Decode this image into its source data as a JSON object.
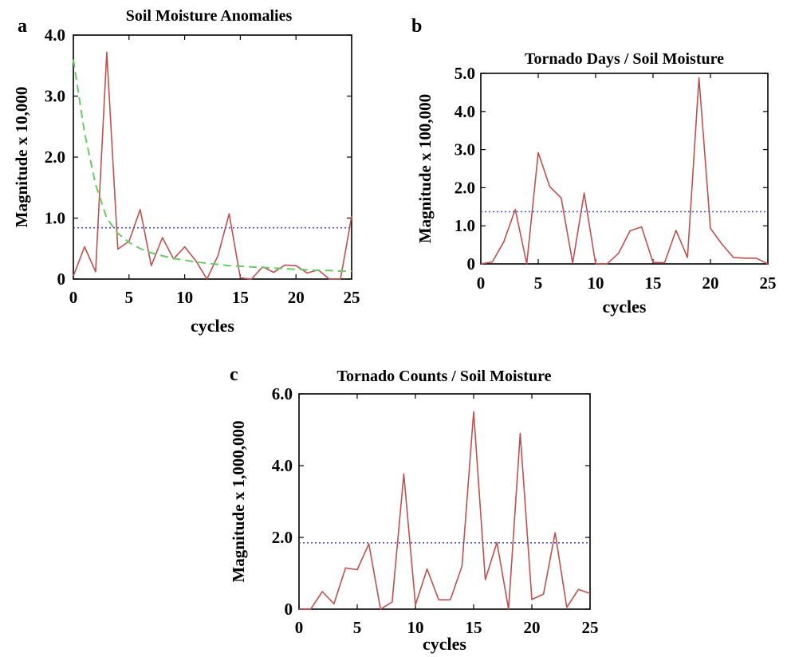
{
  "chart_data": [
    {
      "panel": "a",
      "type": "line",
      "title": "Soil Moisture Anomalies",
      "xlabel": "cycles",
      "ylabel": "Magnitude x 10,000",
      "xlim": [
        0,
        25
      ],
      "ylim": [
        0,
        4.0
      ],
      "x_ticks": [
        "0",
        "5",
        "10",
        "15",
        "20",
        "25"
      ],
      "y_ticks": [
        "0",
        "1.0",
        "2.0",
        "3.0",
        "4.0"
      ],
      "x": [
        0,
        1,
        2,
        3,
        4,
        5,
        6,
        7,
        8,
        9,
        10,
        11,
        12,
        13,
        14,
        15,
        16,
        17,
        18,
        19,
        20,
        21,
        22,
        23,
        24,
        25
      ],
      "series": [
        {
          "values": [
            0.05,
            0.53,
            0.12,
            3.72,
            0.49,
            0.62,
            1.14,
            0.22,
            0.68,
            0.33,
            0.53,
            0.3,
            0.0,
            0.39,
            1.07,
            0.02,
            0.0,
            0.2,
            0.11,
            0.23,
            0.22,
            0.1,
            0.15,
            0.0,
            0.0,
            1.03
          ],
          "color": "#c0504d",
          "style": "solid"
        },
        {
          "values": [
            3.6,
            2.4,
            1.55,
            1.0,
            0.75,
            0.6,
            0.5,
            0.43,
            0.38,
            0.34,
            0.31,
            0.28,
            0.26,
            0.24,
            0.22,
            0.21,
            0.2,
            0.19,
            0.18,
            0.17,
            0.16,
            0.15,
            0.14,
            0.14,
            0.13,
            0.13
          ],
          "color": "#66cc66",
          "style": "dashed"
        },
        {
          "values": [
            0.84,
            0.84,
            0.84,
            0.84,
            0.84,
            0.84,
            0.84,
            0.84,
            0.84,
            0.84,
            0.84,
            0.84,
            0.84,
            0.84,
            0.84,
            0.84,
            0.84,
            0.84,
            0.84,
            0.84,
            0.84,
            0.84,
            0.84,
            0.84,
            0.84,
            0.84
          ],
          "color": "#4a4acc",
          "style": "dotted"
        }
      ]
    },
    {
      "panel": "b",
      "type": "line",
      "title": "Tornado Days / Soil Moisture",
      "xlabel": "cycles",
      "ylabel": "Magnitude x 100,000",
      "xlim": [
        0,
        25
      ],
      "ylim": [
        0,
        5.0
      ],
      "x_ticks": [
        "0",
        "5",
        "10",
        "15",
        "20",
        "25"
      ],
      "y_ticks": [
        "0",
        "1.0",
        "2.0",
        "3.0",
        "4.0",
        "5.0"
      ],
      "x": [
        0,
        1,
        2,
        3,
        4,
        5,
        6,
        7,
        8,
        9,
        10,
        11,
        12,
        13,
        14,
        15,
        16,
        17,
        18,
        19,
        20,
        21,
        22,
        23,
        24,
        25
      ],
      "series": [
        {
          "values": [
            0.0,
            0.05,
            0.58,
            1.43,
            0.0,
            2.92,
            2.03,
            1.73,
            0.02,
            1.86,
            0.0,
            0.0,
            0.28,
            0.87,
            0.97,
            0.04,
            0.03,
            0.88,
            0.17,
            4.88,
            0.93,
            0.52,
            0.17,
            0.15,
            0.15,
            0.0
          ],
          "color": "#c0504d",
          "style": "solid"
        },
        {
          "values": [
            1.37,
            1.37,
            1.37,
            1.37,
            1.37,
            1.37,
            1.37,
            1.37,
            1.37,
            1.37,
            1.37,
            1.37,
            1.37,
            1.37,
            1.37,
            1.37,
            1.37,
            1.37,
            1.37,
            1.37,
            1.37,
            1.37,
            1.37,
            1.37,
            1.37,
            1.37
          ],
          "color": "#4a4acc",
          "style": "dotted"
        }
      ]
    },
    {
      "panel": "c",
      "type": "line",
      "title": "Tornado Counts / Soil Moisture",
      "xlabel": "cycles",
      "ylabel": "Magnitude x 1,000,000",
      "xlim": [
        0,
        25
      ],
      "ylim": [
        0,
        6.0
      ],
      "x_ticks": [
        "0",
        "5",
        "10",
        "15",
        "20",
        "25"
      ],
      "y_ticks": [
        "0",
        "2.0",
        "4.0",
        "6.0"
      ],
      "x": [
        0,
        1,
        2,
        3,
        4,
        5,
        6,
        7,
        8,
        9,
        10,
        11,
        12,
        13,
        14,
        15,
        16,
        17,
        18,
        19,
        20,
        21,
        22,
        23,
        24,
        25
      ],
      "series": [
        {
          "values": [
            0.0,
            0.0,
            0.49,
            0.15,
            1.15,
            1.1,
            1.82,
            0.0,
            0.2,
            3.77,
            0.12,
            1.12,
            0.26,
            0.26,
            1.2,
            5.5,
            0.82,
            1.86,
            0.0,
            4.9,
            0.27,
            0.42,
            2.13,
            0.05,
            0.55,
            0.44
          ],
          "color": "#c0504d",
          "style": "solid"
        },
        {
          "values": [
            1.85,
            1.85,
            1.85,
            1.85,
            1.85,
            1.85,
            1.85,
            1.85,
            1.85,
            1.85,
            1.85,
            1.85,
            1.85,
            1.85,
            1.85,
            1.85,
            1.85,
            1.85,
            1.85,
            1.85,
            1.85,
            1.85,
            1.85,
            1.85,
            1.85,
            1.85
          ],
          "color": "#4a4acc",
          "style": "dotted"
        }
      ]
    }
  ]
}
